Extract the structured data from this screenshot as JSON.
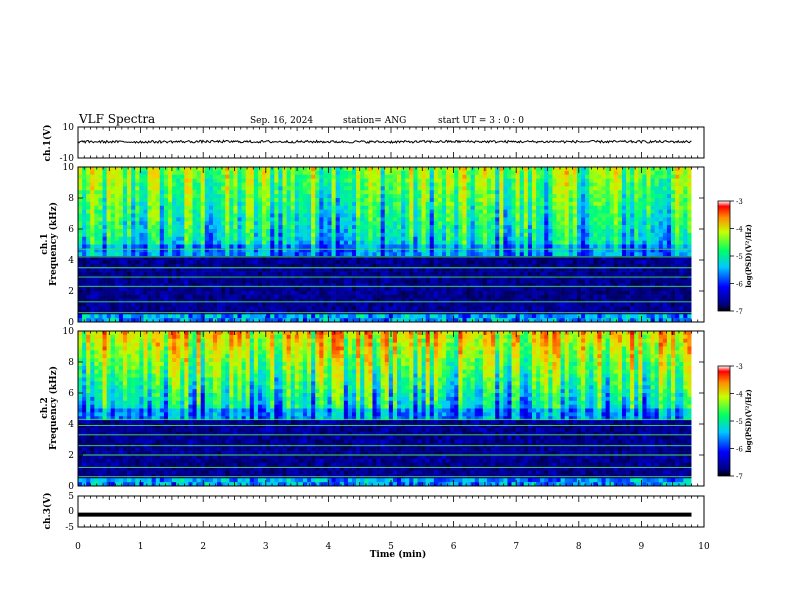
{
  "header": {
    "title": "VLF Spectra",
    "date": "Sep. 16, 2024",
    "station": "station= ANG",
    "start": "start  UT =  3 : 0  : 0"
  },
  "chart_data": [
    {
      "type": "line",
      "name": "ch1-waveform",
      "ylabel": "ch.1(V)",
      "ylim": [
        -10,
        10
      ],
      "yticks": [
        "10",
        "-10"
      ],
      "xlim": [
        0,
        10
      ],
      "x": [
        0,
        1,
        2,
        3,
        4,
        5,
        6,
        7,
        8,
        9,
        9.8
      ],
      "y": [
        0.5,
        0.4,
        0.6,
        0.5,
        0.5,
        0.4,
        0.6,
        0.5,
        0.5,
        0.5,
        0.5
      ]
    },
    {
      "type": "heatmap",
      "name": "ch1-spectrogram",
      "ylabel": "ch.1",
      "ylabel2": "Frequency (kHz)",
      "ylim": [
        0,
        10
      ],
      "yticks": [
        "0",
        "2",
        "4",
        "6",
        "8",
        "10"
      ],
      "xlim": [
        0,
        10
      ],
      "data_end_min": 9.8,
      "colorbar": {
        "label": "log(PSD)(V²/Hz)",
        "range": [
          -7,
          -3
        ],
        "ticks": [
          "-3",
          "-4",
          "-5",
          "-6",
          "-7"
        ]
      },
      "horizontal_lines_khz": [
        0.6,
        1.3,
        2.3,
        2.9,
        3.5,
        4.2,
        4.7
      ]
    },
    {
      "type": "heatmap",
      "name": "ch2-spectrogram",
      "ylabel": "ch.2",
      "ylabel2": "Frequency (kHz)",
      "ylim": [
        0,
        10
      ],
      "yticks": [
        "0",
        "2",
        "4",
        "6",
        "8",
        "10"
      ],
      "xlim": [
        0,
        10
      ],
      "data_end_min": 9.8,
      "colorbar": {
        "label": "log(PSD)(V²/Hz)",
        "range": [
          -7,
          -3
        ],
        "ticks": [
          "-3",
          "-4",
          "-5",
          "-6",
          "-7"
        ]
      },
      "horizontal_lines_khz": [
        0.6,
        1.2,
        2.0,
        2.6,
        3.3,
        3.9,
        4.3
      ]
    },
    {
      "type": "line",
      "name": "ch3-waveform",
      "ylabel": "ch.3(V)",
      "ylim": [
        -5,
        5
      ],
      "yticks": [
        "5",
        "0",
        "-5"
      ],
      "xlim": [
        0,
        10
      ],
      "x": [
        0,
        9.8
      ],
      "y": [
        -1.0,
        -1.0
      ]
    }
  ],
  "xaxis": {
    "label": "Time  (min)",
    "ticks": [
      "0",
      "1",
      "2",
      "3",
      "4",
      "5",
      "6",
      "7",
      "8",
      "9",
      "10"
    ]
  }
}
